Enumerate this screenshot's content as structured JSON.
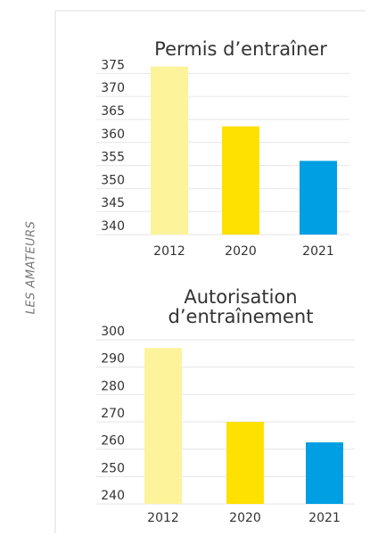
{
  "side_label": "LES AMATEURS",
  "chart_data": [
    {
      "type": "bar",
      "title": "Permis d’entraîner",
      "categories": [
        "2012",
        "2020",
        "2021"
      ],
      "values": [
        376.5,
        363.5,
        356
      ],
      "colors": [
        "#fcf39b",
        "#ffe100",
        "#009fe3"
      ],
      "ylim": [
        340,
        377
      ],
      "yticks": [
        340,
        345,
        350,
        355,
        360,
        365,
        370,
        375
      ],
      "grid": true
    },
    {
      "type": "bar",
      "title": "Autorisation d’entraînement",
      "categories": [
        "2012",
        "2020",
        "2021"
      ],
      "values": [
        297,
        270,
        262.5
      ],
      "colors": [
        "#fcf39b",
        "#ffe100",
        "#009fe3"
      ],
      "ylim": [
        240,
        300
      ],
      "yticks": [
        240,
        250,
        260,
        270,
        280,
        290,
        300
      ],
      "grid": true
    }
  ]
}
